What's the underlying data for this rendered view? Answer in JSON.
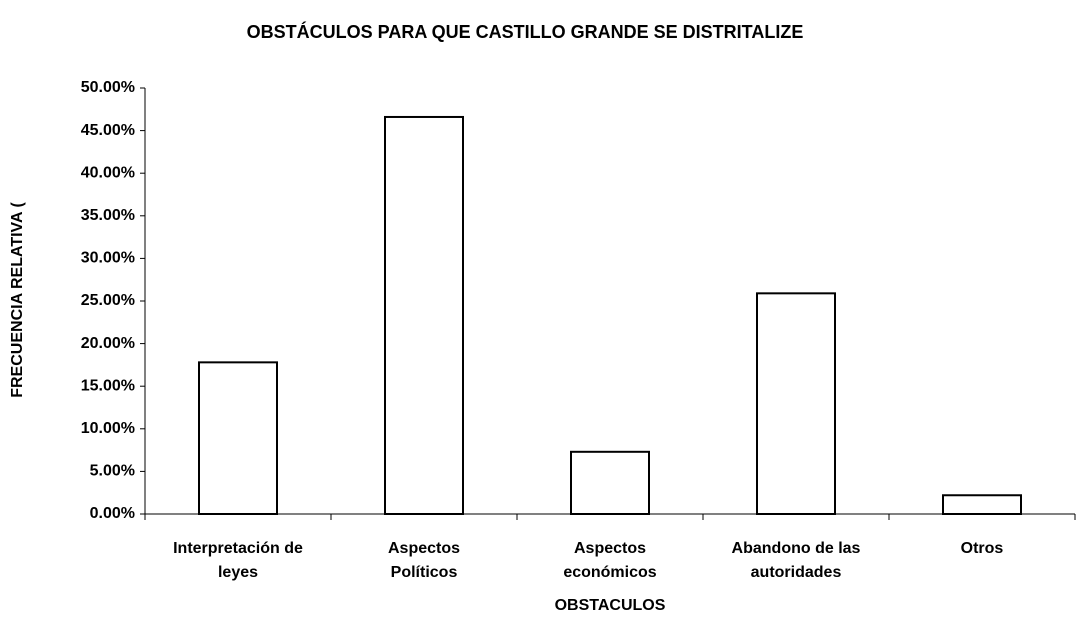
{
  "chart_data": {
    "type": "bar",
    "title": "OBSTÁCULOS PARA QUE CASTILLO GRANDE SE DISTRITALIZE",
    "x_label": "OBSTACULOS",
    "y_label": "FRECUENCIA RELATIVA (",
    "categories": [
      [
        "Interpretación de",
        "leyes"
      ],
      [
        "Aspectos",
        "Políticos"
      ],
      [
        "Aspectos",
        "económicos"
      ],
      [
        "Abandono de las",
        "autoridades"
      ],
      [
        "Otros"
      ]
    ],
    "values": [
      17.8,
      46.6,
      7.3,
      25.9,
      2.2
    ],
    "color": "#ffffff",
    "ylim": [
      0,
      50
    ],
    "yticks": [
      {
        "value": 0,
        "label": "0.00%"
      },
      {
        "value": 5,
        "label": "5.00%"
      },
      {
        "value": 10,
        "label": "10.00%"
      },
      {
        "value": 15,
        "label": "15.00%"
      },
      {
        "value": 20,
        "label": "20.00%"
      },
      {
        "value": 25,
        "label": "25.00%"
      },
      {
        "value": 30,
        "label": "30.00%"
      },
      {
        "value": 35,
        "label": "35.00%"
      },
      {
        "value": 40,
        "label": "40.00%"
      },
      {
        "value": 45,
        "label": "45.00%"
      },
      {
        "value": 50,
        "label": "50.00%"
      }
    ],
    "grid": false
  }
}
